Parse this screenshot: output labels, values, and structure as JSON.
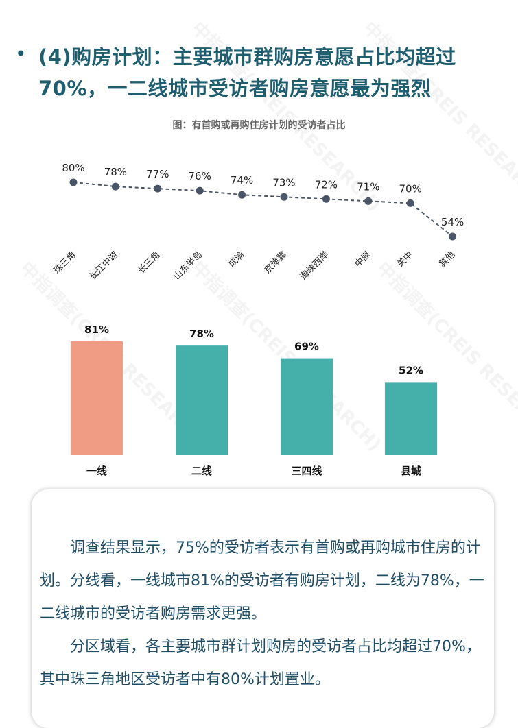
{
  "title": {
    "bullet": "•",
    "text": "(4)购房计划：主要城市群购房意愿占比均超过70%，一二线城市受访者购房意愿最为强烈"
  },
  "watermark": {
    "text": "中指调查(CREIS RESEARCH)"
  },
  "chart_title": "图：有首购或再购住房计划的受访者占比",
  "colors": {
    "title": "#1f5e6e",
    "line": "#4a5568",
    "bar_tier1": "#f09c84",
    "bar_other": "#45b0aa",
    "body_text": "#1f4e66"
  },
  "chart_data": [
    {
      "type": "line",
      "categories": [
        "珠三角",
        "长江中游",
        "长三角",
        "山东半岛",
        "成渝",
        "京津冀",
        "海峡西岸",
        "中原",
        "关中",
        "其他"
      ],
      "values": [
        80,
        78,
        77,
        76,
        74,
        73,
        72,
        71,
        70,
        54
      ],
      "value_labels": [
        "80%",
        "78%",
        "77%",
        "76%",
        "74%",
        "73%",
        "72%",
        "71%",
        "70%",
        "54%"
      ],
      "line_style": "dashed",
      "grid": false
    },
    {
      "type": "bar",
      "categories": [
        "一线",
        "二线",
        "三四线",
        "县城"
      ],
      "values": [
        81,
        78,
        69,
        52
      ],
      "value_labels": [
        "81%",
        "78%",
        "69%",
        "52%"
      ],
      "grid": false
    }
  ],
  "body_text": {
    "para1": "调查结果显示，75%的受访者表示有首购或再购城市住房的计划。分线看，一线城市81%的受访者有购房计划，二线为78%，一二线城市的受访者购房需求更强。",
    "para2": "分区域看，各主要城市群计划购房的受访者占比均超过70%，其中珠三角地区受访者中有80%计划置业。"
  }
}
